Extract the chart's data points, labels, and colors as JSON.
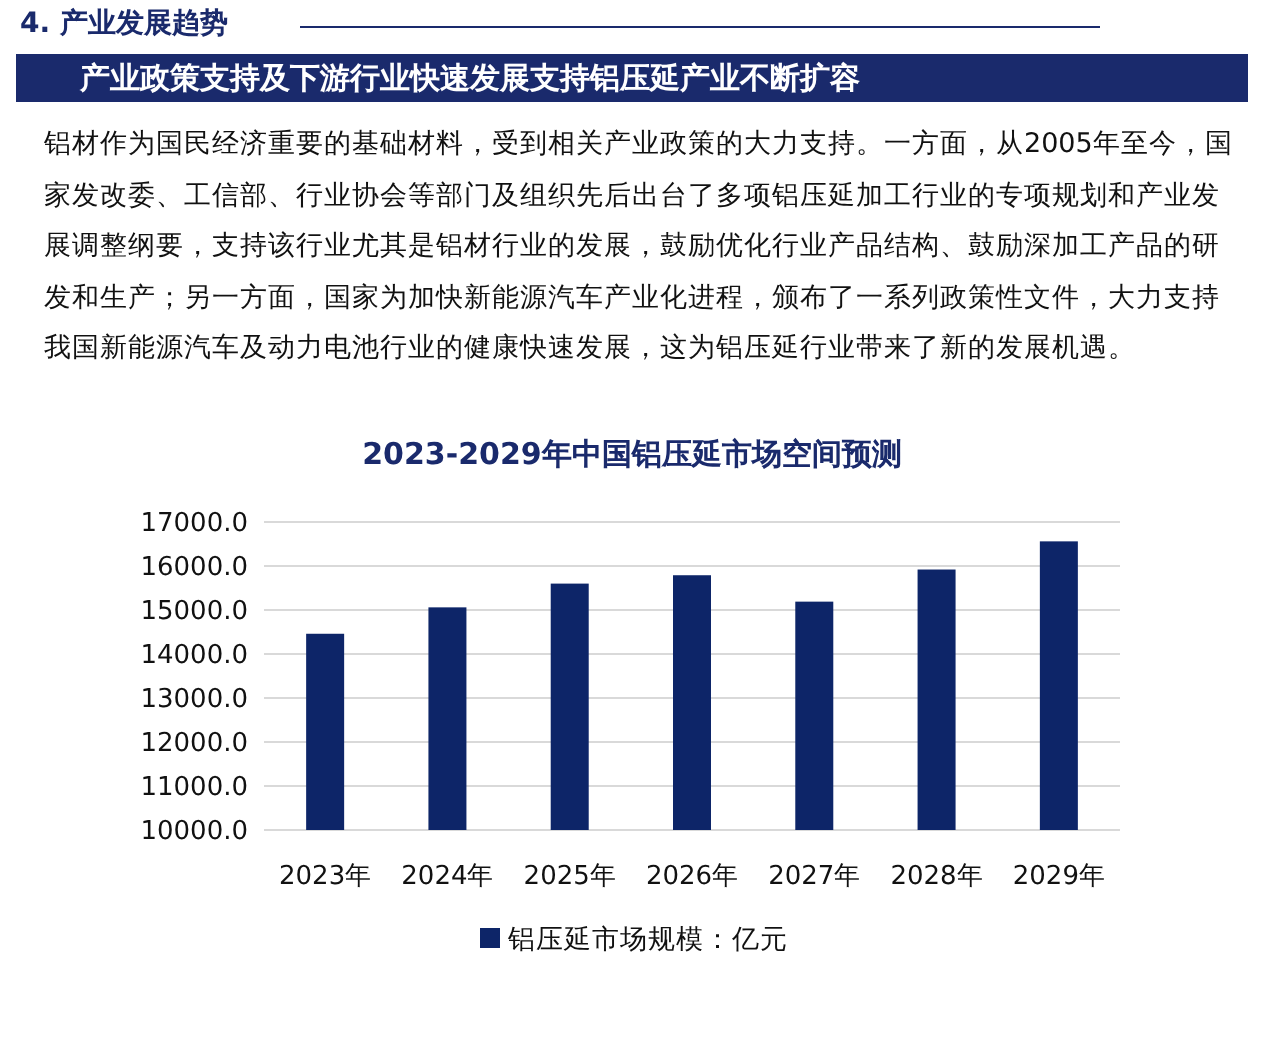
{
  "chart_data": {
    "type": "bar",
    "title": "2023-2029年中国铝压延市场空间预测",
    "annotations": [
      "4. 产业发展趋势",
      "产业政策支持及下游行业快速发展支持铝压延产业不断扩容",
      "铝材作为国民经济重要的基础材料，受到相关产业政策的大力支持。一方面，从2005年至今，国家发改委、工信部、行业协会等部门及组织先后出台了多项铝压延加工行业的专项规划和产业发展调整纲要，支持该行业尤其是铝材行业的发展，鼓励优化行业产品结构、鼓励深加工产品的研发和生产；另一方面，国家为加快新能源汽车产业化进程，颁布了一系列政策性文件，大力支持我国新能源汽车及动力电池行业的健康快速发展，这为铝压延行业带来了新的发展机遇。"
    ],
    "categories": [
      "2023年",
      "2024年",
      "2025年",
      "2026年",
      "2027年",
      "2028年",
      "2029年"
    ],
    "series": [
      {
        "name": "铝压延市场规模：亿元",
        "color": "#0d2568",
        "values": [
          14460,
          15060,
          15600,
          15790,
          15190,
          15920,
          16560
        ]
      }
    ],
    "ylim": [
      10000,
      17000
    ],
    "yticks": [
      {
        "value": 10000,
        "label": "10000.0"
      },
      {
        "value": 11000,
        "label": "11000.0"
      },
      {
        "value": 12000,
        "label": "12000.0"
      },
      {
        "value": 13000,
        "label": "13000.0"
      },
      {
        "value": 14000,
        "label": "14000.0"
      },
      {
        "value": 15000,
        "label": "15000.0"
      },
      {
        "value": 16000,
        "label": "16000.0"
      },
      {
        "value": 17000,
        "label": "17000.0"
      }
    ],
    "grid": "y",
    "legend": "bottom"
  }
}
